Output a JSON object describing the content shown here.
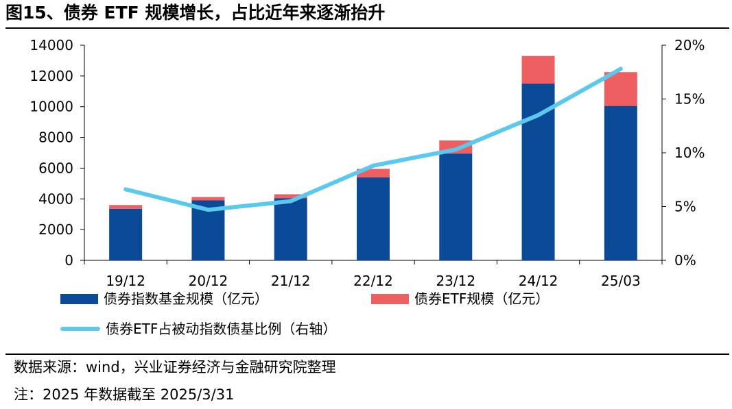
{
  "title": "图15、债券 ETF 规模增长，占比近年来逐渐抬升",
  "colors": {
    "fund_bar": "#0b4a96",
    "etf_bar": "#ee5f61",
    "ratio_line": "#5bc8ee"
  },
  "chart_data": {
    "type": "bar",
    "stacked": true,
    "categories": [
      "19/12",
      "20/12",
      "21/12",
      "22/12",
      "23/12",
      "24/12",
      "25/03"
    ],
    "series": [
      {
        "name": "债券指数基金规模（亿元）",
        "type": "bar",
        "axis": "left",
        "values": [
          3350,
          3900,
          4050,
          5400,
          6950,
          11500,
          10050
        ]
      },
      {
        "name": "债券ETF规模（亿元）",
        "type": "bar",
        "axis": "left",
        "values": [
          250,
          220,
          250,
          550,
          850,
          1800,
          2200
        ]
      },
      {
        "name": "债券ETF占被动指数债基比例（右轴）",
        "type": "line",
        "axis": "right",
        "values": [
          6.6,
          4.7,
          5.5,
          8.8,
          10.3,
          13.5,
          17.8
        ]
      }
    ],
    "left_axis": {
      "min": 0,
      "max": 14000,
      "ticks": [
        0,
        2000,
        4000,
        6000,
        8000,
        10000,
        12000,
        14000
      ]
    },
    "right_axis": {
      "min": 0,
      "max": 20,
      "ticks": [
        "0%",
        "5%",
        "10%",
        "15%",
        "20%"
      ]
    },
    "legend_position": "bottom"
  },
  "legend": {
    "fund": "债券指数基金规模（亿元）",
    "etf": "债券ETF规模（亿元）",
    "ratio": "债券ETF占被动指数债基比例（右轴）"
  },
  "footer": {
    "source": "数据来源：wind，兴业证券经济与金融研究院整理",
    "note": "注：2025 年数据截至 2025/3/31"
  }
}
